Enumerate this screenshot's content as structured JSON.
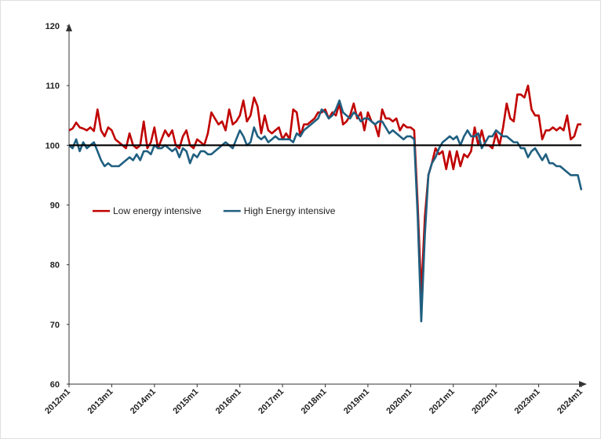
{
  "chart_data": {
    "type": "line",
    "categories": [
      "2012m1",
      null,
      null,
      null,
      null,
      null,
      null,
      null,
      null,
      null,
      null,
      null,
      "2013m1",
      null,
      null,
      null,
      null,
      null,
      null,
      null,
      null,
      null,
      null,
      null,
      "2014m1",
      null,
      null,
      null,
      null,
      null,
      null,
      null,
      null,
      null,
      null,
      null,
      "2015m1",
      null,
      null,
      null,
      null,
      null,
      null,
      null,
      null,
      null,
      null,
      null,
      "2016m1",
      null,
      null,
      null,
      null,
      null,
      null,
      null,
      null,
      null,
      null,
      null,
      "2017m1",
      null,
      null,
      null,
      null,
      null,
      null,
      null,
      null,
      null,
      null,
      null,
      "2018m1",
      null,
      null,
      null,
      null,
      null,
      null,
      null,
      null,
      null,
      null,
      null,
      "2019m1",
      null,
      null,
      null,
      null,
      null,
      null,
      null,
      null,
      null,
      null,
      null,
      "2020m1",
      null,
      null,
      null,
      null,
      null,
      null,
      null,
      null,
      null,
      null,
      null,
      "2021m1",
      null,
      null,
      null,
      null,
      null,
      null,
      null,
      null,
      null,
      null,
      null,
      "2022m1",
      null,
      null,
      null,
      null,
      null,
      null,
      null,
      null,
      null,
      null,
      null,
      "2023m1",
      null,
      null,
      null,
      null,
      null,
      null,
      null,
      null,
      null,
      null,
      null,
      "2024m1"
    ],
    "series": [
      {
        "name": "Low energy intensive",
        "color": "#c00000",
        "values": [
          102.5,
          102.8,
          103.8,
          103,
          102.8,
          102.5,
          103,
          102.4,
          106,
          102.5,
          101.5,
          103,
          102.5,
          101,
          100.5,
          100,
          99.5,
          102,
          100,
          99.5,
          100,
          104,
          99.5,
          100.5,
          103,
          99.5,
          101,
          102.5,
          101.5,
          102.5,
          100,
          99.5,
          101.5,
          102.5,
          100,
          99.5,
          101,
          100.5,
          100,
          102,
          105.5,
          104.5,
          103.5,
          104,
          102.5,
          106,
          103.5,
          104,
          105,
          107.5,
          104,
          105,
          108,
          106.5,
          102,
          105,
          102.5,
          102,
          102.5,
          103,
          101,
          102,
          101,
          106,
          105.5,
          101.5,
          103.5,
          103.5,
          104,
          104.5,
          105.5,
          105.5,
          106,
          104.5,
          105.5,
          105,
          107,
          103.5,
          104,
          105,
          107,
          104.5,
          105.5,
          102.5,
          105.5,
          104,
          103.5,
          101.5,
          106,
          104.5,
          104.5,
          104,
          104.5,
          102.5,
          103.5,
          103,
          103,
          102.5,
          90,
          75,
          88,
          95,
          97,
          99.5,
          98.5,
          99,
          96,
          99,
          96,
          99,
          96.5,
          98.5,
          98,
          99,
          103,
          100,
          102.5,
          100,
          100,
          99.5,
          102,
          100,
          103,
          107,
          104.5,
          104,
          108.5,
          108.5,
          108,
          110,
          106,
          105,
          105,
          101,
          102.5,
          102.5,
          103,
          102.5,
          103,
          102.5,
          105,
          101,
          101.5,
          103.5,
          103.5
        ]
      },
      {
        "name": "High Energy intensive",
        "color": "#1f5f80",
        "values": [
          100,
          99.5,
          101,
          99,
          100.5,
          99.5,
          100,
          100.5,
          99,
          97.5,
          96.5,
          97,
          96.5,
          96.5,
          96.5,
          97,
          97.5,
          98,
          97.5,
          98.5,
          97.5,
          99,
          99,
          98.5,
          100,
          99.5,
          99.5,
          100,
          99.5,
          99,
          99.5,
          98,
          99.5,
          99,
          97,
          98.5,
          98,
          99,
          99,
          98.5,
          98.5,
          99,
          99.5,
          100,
          100.5,
          100,
          99.5,
          101,
          102.5,
          101.5,
          100,
          100.5,
          103,
          101.5,
          101,
          101.5,
          100.5,
          101,
          101.5,
          101,
          101,
          101,
          101,
          100.5,
          102,
          101.5,
          102.5,
          103,
          103.5,
          104,
          104.5,
          106,
          105.5,
          104.5,
          105,
          106,
          107.5,
          105.5,
          105,
          104.5,
          105.5,
          105,
          104,
          104.5,
          104.5,
          104,
          103.5,
          104,
          104,
          103,
          102,
          102.5,
          102,
          101.5,
          101,
          101.5,
          101.5,
          101,
          88,
          70.5,
          85,
          95,
          97,
          98,
          99.5,
          100.5,
          101,
          101.5,
          101,
          101.5,
          100,
          101.5,
          102.5,
          101.5,
          101.5,
          102,
          99.5,
          100.5,
          101.5,
          101.5,
          102.5,
          102,
          101.5,
          101.5,
          101,
          100.5,
          100.5,
          99.5,
          99.5,
          98,
          99,
          99.5,
          98.5,
          97.5,
          98.5,
          97,
          97,
          96.5,
          96.5,
          96,
          95.5,
          95,
          95,
          95,
          92.5
        ]
      }
    ],
    "reference_line": 100,
    "ylim": [
      60,
      120
    ],
    "yticks": [
      60,
      70,
      80,
      90,
      100,
      110,
      120
    ],
    "grid": false,
    "legend": "center-left"
  }
}
